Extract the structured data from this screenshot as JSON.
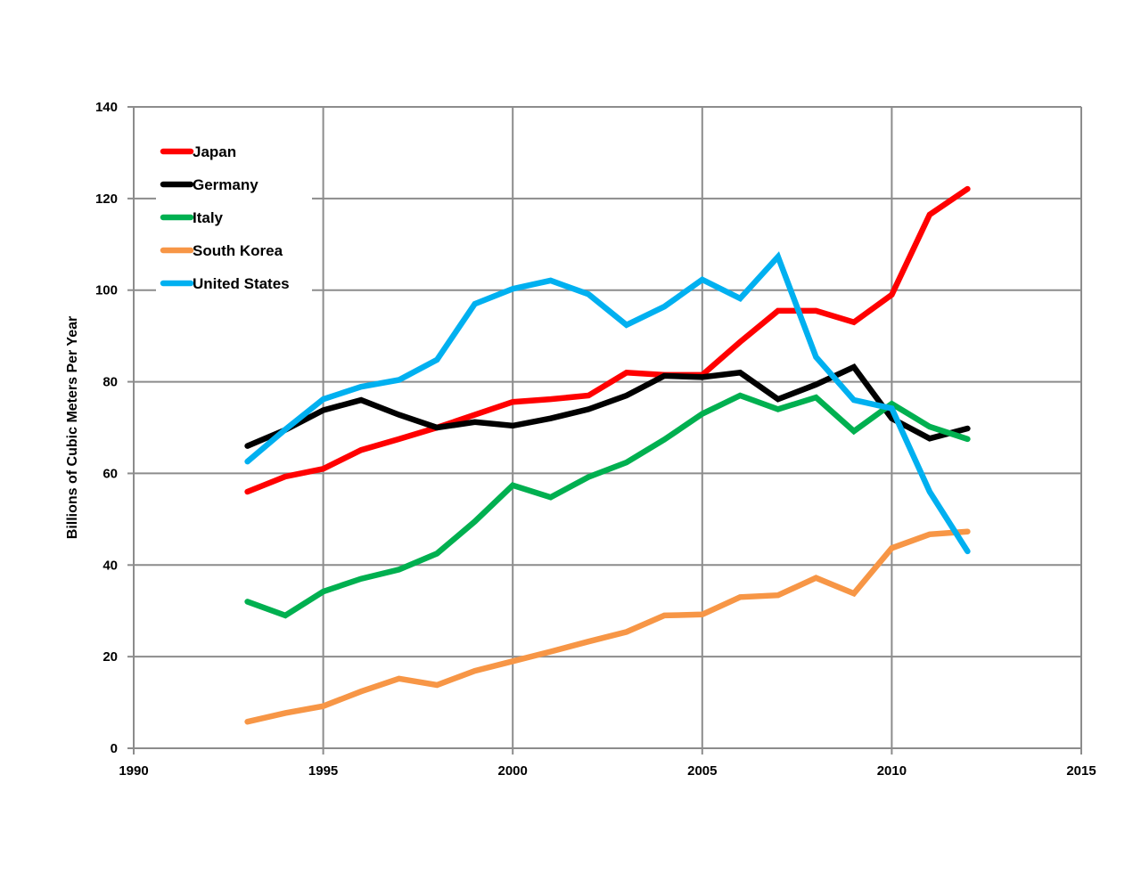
{
  "chart_data": {
    "type": "line",
    "title": "",
    "xlabel": "",
    "ylabel": "Billions of Cubic Meters Per Year",
    "xlim": [
      1990,
      2015
    ],
    "ylim": [
      0,
      140
    ],
    "x_ticks": [
      1990,
      1995,
      2000,
      2005,
      2010,
      2015
    ],
    "y_ticks": [
      0,
      20,
      40,
      60,
      80,
      100,
      120,
      140
    ],
    "grid": true,
    "legend_position": "top-left",
    "x": [
      1993,
      1994,
      1995,
      1996,
      1997,
      1998,
      1999,
      2000,
      2001,
      2002,
      2003,
      2004,
      2005,
      2006,
      2007,
      2008,
      2009,
      2010,
      2011,
      2012
    ],
    "series": [
      {
        "name": "Japan",
        "color": "#ff0000",
        "values": [
          56,
          59.3,
          61,
          65.1,
          67.5,
          70,
          72.8,
          75.6,
          76.2,
          77,
          82,
          81.5,
          81.5,
          88.7,
          95.5,
          95.5,
          93,
          99,
          116.5,
          122.1
        ]
      },
      {
        "name": "Germany",
        "color": "#000000",
        "values": [
          66,
          69.5,
          73.8,
          76,
          72.8,
          70,
          71.2,
          70.4,
          72,
          74,
          77,
          81.3,
          81,
          82,
          76.2,
          79.4,
          83.2,
          72,
          67.6,
          69.8
        ]
      },
      {
        "name": "Italy",
        "color": "#00b050",
        "values": [
          32,
          29,
          34.2,
          37,
          39,
          42.5,
          49.5,
          57.4,
          54.8,
          59.2,
          62.4,
          67.4,
          73,
          77,
          74,
          76.6,
          69.2,
          75.2,
          70.2,
          67.5
        ]
      },
      {
        "name": "South Korea",
        "color": "#f79646",
        "values": [
          5.8,
          7.7,
          9.2,
          12.4,
          15.2,
          13.8,
          16.9,
          19,
          21.1,
          23.3,
          25.4,
          29,
          29.2,
          33,
          33.4,
          37.2,
          33.8,
          43.7,
          46.7,
          47.3
        ]
      },
      {
        "name": "United States",
        "color": "#00b0f0",
        "values": [
          62.6,
          69.6,
          76.2,
          78.9,
          80.4,
          84.8,
          97,
          100.3,
          102.1,
          99.1,
          92.4,
          96.4,
          102.3,
          98.2,
          107.3,
          85.4,
          76,
          74.2,
          56,
          43
        ]
      }
    ]
  }
}
